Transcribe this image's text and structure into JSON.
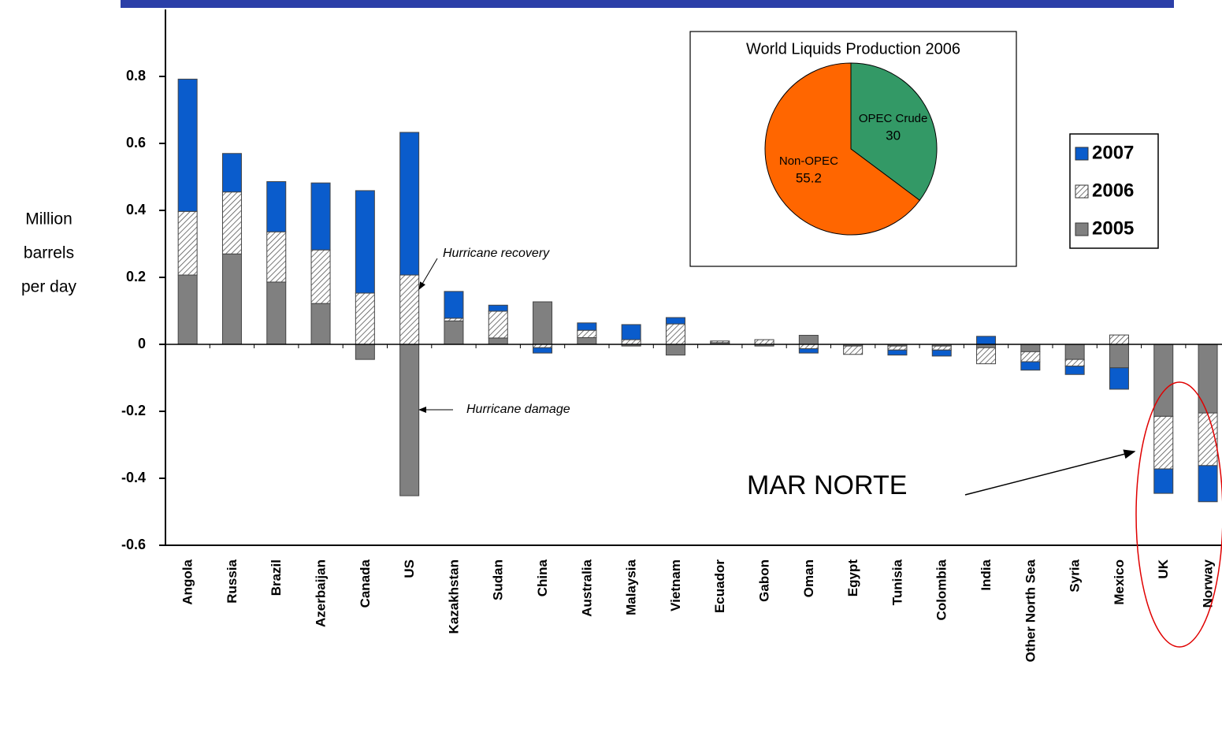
{
  "chart_data": [
    {
      "type": "bar",
      "ylabel": [
        "Million",
        "barrels",
        "per day"
      ],
      "categories": [
        "Angola",
        "Russia",
        "Brazil",
        "Azerbaijan",
        "Canada",
        "US",
        "Kazakhstan",
        "Sudan",
        "China",
        "Australia",
        "Malaysia",
        "Vietnam",
        "Ecuador",
        "Gabon",
        "Oman",
        "Egypt",
        "Tunisia",
        "Colombia",
        "India",
        "Other North Sea",
        "Syria",
        "Mexico",
        "UK",
        "Norway"
      ],
      "series": [
        {
          "name": "2005",
          "color": "#808080",
          "values": [
            0.207,
            0.27,
            0.186,
            0.122,
            -0.045,
            -0.452,
            0.07,
            0.019,
            0.127,
            0.02,
            -0.005,
            -0.032,
            0.005,
            -0.005,
            0.027,
            -0.005,
            -0.005,
            -0.005,
            -0.01,
            -0.022,
            -0.045,
            -0.07,
            -0.215,
            -0.205
          ]
        },
        {
          "name": "2006",
          "color": "#ffffff",
          "pattern": "hatch",
          "values": [
            0.19,
            0.185,
            0.15,
            0.16,
            0.153,
            0.207,
            0.008,
            0.08,
            -0.01,
            0.022,
            0.014,
            0.061,
            0.005,
            0.014,
            -0.013,
            -0.025,
            -0.012,
            -0.012,
            -0.048,
            -0.03,
            -0.02,
            0.028,
            -0.157,
            -0.157
          ]
        },
        {
          "name": "2007",
          "color": "#0a5ccc",
          "values": [
            0.395,
            0.115,
            0.15,
            0.2,
            0.306,
            0.426,
            0.08,
            0.018,
            -0.016,
            0.022,
            0.045,
            0.019,
            0,
            0,
            -0.013,
            0,
            -0.015,
            -0.018,
            0.024,
            -0.025,
            -0.025,
            -0.064,
            -0.073,
            -0.108
          ]
        }
      ],
      "ylim": [
        -0.6,
        1
      ],
      "yticks": [
        -0.6,
        -0.4,
        -0.2,
        0,
        0.2,
        0.4,
        0.6,
        0.8
      ],
      "annotations": [
        "Hurricane recovery",
        "Hurricane damage",
        "MAR NORTE"
      ]
    },
    {
      "type": "pie",
      "title": "World Liquids Production 2006",
      "categories": [
        "OPEC Crude",
        "Non-OPEC"
      ],
      "values": [
        30,
        55.2
      ],
      "colors": [
        "#339966",
        "#ff6600"
      ]
    }
  ]
}
